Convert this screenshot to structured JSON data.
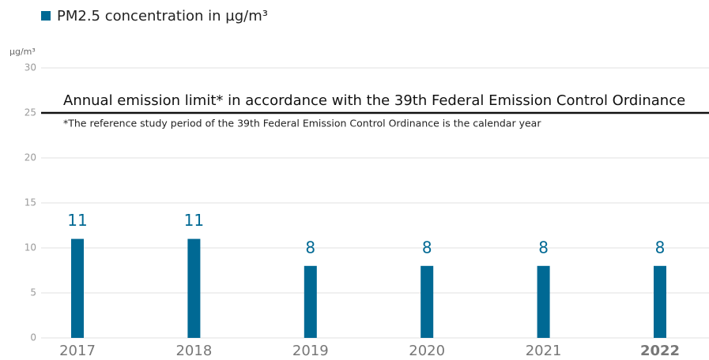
{
  "chart_data": {
    "type": "bar",
    "legend": "PM2.5 concentration in µg/m³",
    "y_label": "µg/m³",
    "categories": [
      "2017",
      "2018",
      "2019",
      "2020",
      "2021",
      "2022"
    ],
    "series": [
      {
        "name": "PM2.5 concentration in µg/m³",
        "color": "#006994",
        "values": [
          11,
          11,
          8,
          8,
          8,
          8
        ]
      }
    ],
    "ylim": [
      0,
      30
    ],
    "yticks": [
      0,
      5,
      10,
      15,
      20,
      25,
      30
    ],
    "grid": true,
    "reference_line": {
      "value": 25,
      "label": "Annual emission limit* in accordance with the 39th Federal Emission Control Ordinance",
      "note": "*The reference study period of the 39th Federal Emission Control Ordinance is the calendar year"
    }
  }
}
